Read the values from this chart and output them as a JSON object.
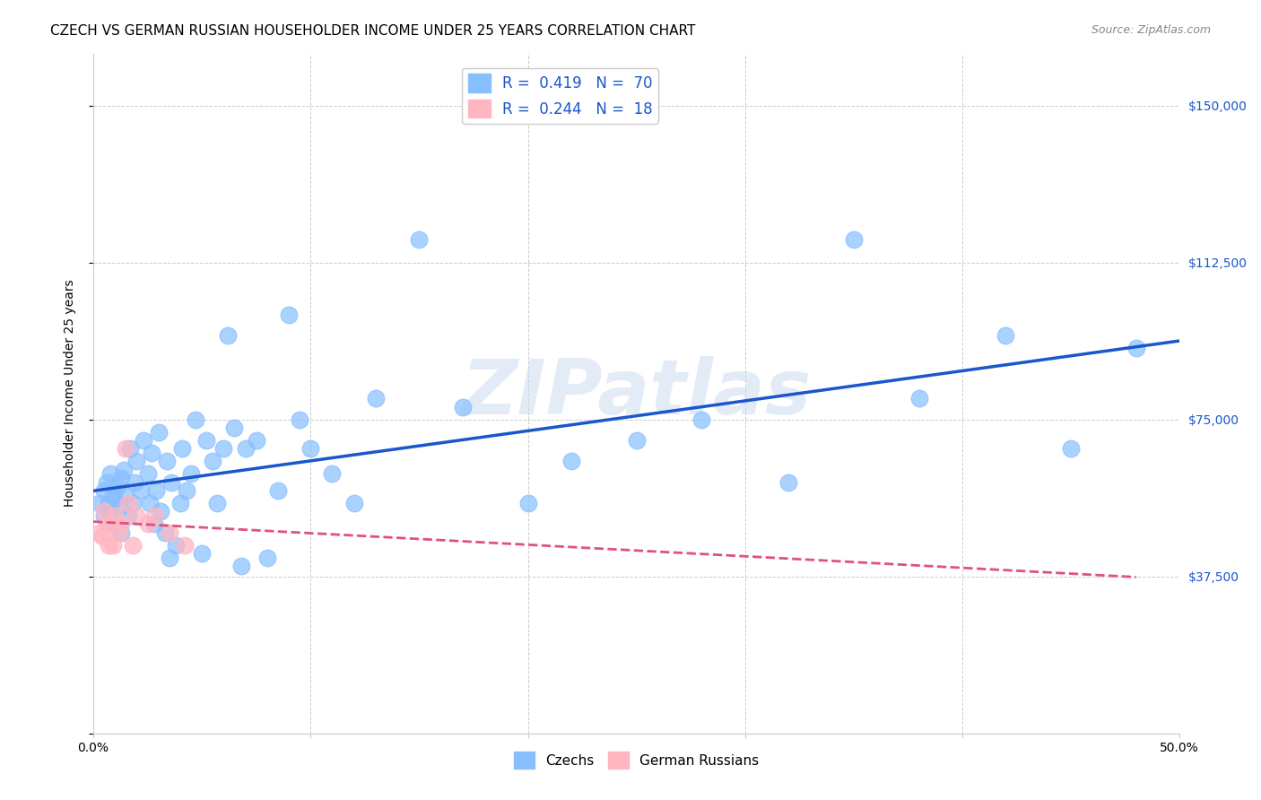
{
  "title": "CZECH VS GERMAN RUSSIAN HOUSEHOLDER INCOME UNDER 25 YEARS CORRELATION CHART",
  "source": "Source: ZipAtlas.com",
  "ylabel": "Householder Income Under 25 years",
  "xlim": [
    0.0,
    0.5
  ],
  "ylim": [
    0,
    162500
  ],
  "yticks": [
    0,
    37500,
    75000,
    112500,
    150000
  ],
  "ytick_labels": [
    "",
    "$37,500",
    "$75,000",
    "$112,500",
    "$150,000"
  ],
  "xticks": [
    0.0,
    0.1,
    0.2,
    0.3,
    0.4,
    0.5
  ],
  "xtick_labels": [
    "0.0%",
    "",
    "",
    "",
    "",
    "50.0%"
  ],
  "legend_czechs": "Czechs",
  "legend_german": "German Russians",
  "R_czechs": 0.419,
  "N_czechs": 70,
  "R_german": 0.244,
  "N_german": 18,
  "czechs_color": "#87BFFF",
  "german_color": "#FFB6C1",
  "czechs_line_color": "#1A56CC",
  "german_line_color": "#E05080",
  "czechs_x": [
    0.003,
    0.005,
    0.005,
    0.006,
    0.007,
    0.008,
    0.008,
    0.009,
    0.009,
    0.01,
    0.011,
    0.012,
    0.013,
    0.013,
    0.014,
    0.015,
    0.016,
    0.017,
    0.018,
    0.019,
    0.02,
    0.022,
    0.023,
    0.025,
    0.026,
    0.027,
    0.028,
    0.029,
    0.03,
    0.031,
    0.033,
    0.034,
    0.035,
    0.036,
    0.038,
    0.04,
    0.041,
    0.043,
    0.045,
    0.047,
    0.05,
    0.052,
    0.055,
    0.057,
    0.06,
    0.062,
    0.065,
    0.068,
    0.07,
    0.075,
    0.08,
    0.085,
    0.09,
    0.095,
    0.1,
    0.11,
    0.12,
    0.13,
    0.15,
    0.17,
    0.2,
    0.22,
    0.25,
    0.28,
    0.32,
    0.35,
    0.38,
    0.42,
    0.45,
    0.48
  ],
  "czechs_y": [
    55000,
    58000,
    52000,
    60000,
    55000,
    62000,
    53000,
    57000,
    50000,
    56000,
    59000,
    54000,
    61000,
    48000,
    63000,
    57000,
    52000,
    68000,
    55000,
    60000,
    65000,
    58000,
    70000,
    62000,
    55000,
    67000,
    50000,
    58000,
    72000,
    53000,
    48000,
    65000,
    42000,
    60000,
    45000,
    55000,
    68000,
    58000,
    62000,
    75000,
    43000,
    70000,
    65000,
    55000,
    68000,
    95000,
    73000,
    40000,
    68000,
    70000,
    42000,
    58000,
    100000,
    75000,
    68000,
    62000,
    55000,
    80000,
    118000,
    78000,
    55000,
    65000,
    70000,
    75000,
    60000,
    118000,
    80000,
    95000,
    68000,
    92000
  ],
  "german_x": [
    0.003,
    0.004,
    0.005,
    0.006,
    0.007,
    0.008,
    0.009,
    0.01,
    0.012,
    0.013,
    0.015,
    0.016,
    0.018,
    0.02,
    0.025,
    0.028,
    0.035,
    0.042
  ],
  "german_y": [
    48000,
    47000,
    53000,
    50000,
    45000,
    50000,
    45000,
    52000,
    48000,
    50000,
    68000,
    55000,
    45000,
    52000,
    50000,
    52000,
    48000,
    45000
  ],
  "background_color": "#ffffff",
  "grid_color": "#cccccc",
  "watermark_text": "ZIPatlas",
  "watermark_color": "#c8d8f0",
  "title_fontsize": 11,
  "axis_label_fontsize": 10,
  "tick_fontsize": 10,
  "legend_fontsize": 12,
  "right_tick_color": "#1A56CC"
}
